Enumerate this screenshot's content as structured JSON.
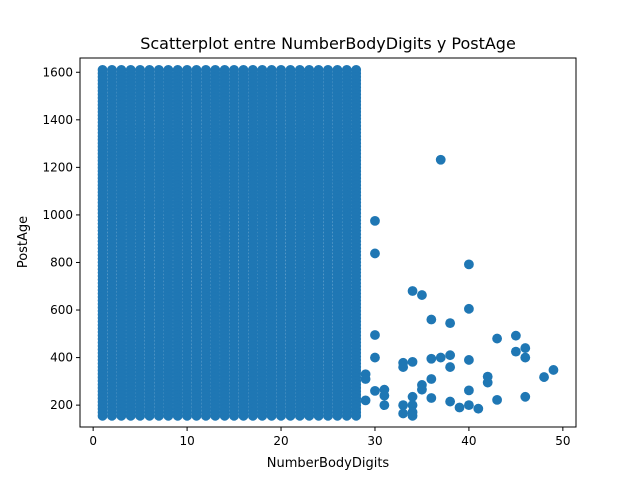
{
  "chart_data": {
    "type": "scatter",
    "title": "Scatterplot entre NumberBodyDigits y PostAge",
    "xlabel": "NumberBodyDigits",
    "ylabel": "PostAge",
    "xlim": [
      -1.4,
      51.4
    ],
    "ylim": [
      108,
      1660
    ],
    "xticks": [
      0,
      10,
      20,
      30,
      40,
      50
    ],
    "yticks": [
      200,
      400,
      600,
      800,
      1000,
      1200,
      1400,
      1600
    ],
    "grid": false,
    "legend": "none",
    "marker_color": "#1f77b4",
    "dense_region": {
      "x_values": [
        1,
        2,
        3,
        4,
        5,
        6,
        7,
        8,
        9,
        10,
        11,
        12,
        13,
        14,
        15,
        16,
        17,
        18,
        19,
        20,
        21,
        22,
        23,
        24,
        25,
        26,
        27,
        28
      ],
      "y_min": 155,
      "y_max": 1610
    },
    "points": [
      {
        "x": 30,
        "y": 975
      },
      {
        "x": 30,
        "y": 838
      },
      {
        "x": 30,
        "y": 495
      },
      {
        "x": 30,
        "y": 400
      },
      {
        "x": 29,
        "y": 330
      },
      {
        "x": 29,
        "y": 310
      },
      {
        "x": 30,
        "y": 260
      },
      {
        "x": 29,
        "y": 220
      },
      {
        "x": 31,
        "y": 265
      },
      {
        "x": 31,
        "y": 240
      },
      {
        "x": 31,
        "y": 200
      },
      {
        "x": 33,
        "y": 378
      },
      {
        "x": 33,
        "y": 360
      },
      {
        "x": 33,
        "y": 200
      },
      {
        "x": 33,
        "y": 165
      },
      {
        "x": 34,
        "y": 680
      },
      {
        "x": 34,
        "y": 382
      },
      {
        "x": 34,
        "y": 235
      },
      {
        "x": 34,
        "y": 200
      },
      {
        "x": 34,
        "y": 170
      },
      {
        "x": 34,
        "y": 155
      },
      {
        "x": 35,
        "y": 663
      },
      {
        "x": 35,
        "y": 285
      },
      {
        "x": 35,
        "y": 265
      },
      {
        "x": 36,
        "y": 560
      },
      {
        "x": 36,
        "y": 395
      },
      {
        "x": 36,
        "y": 310
      },
      {
        "x": 36,
        "y": 230
      },
      {
        "x": 37,
        "y": 1232
      },
      {
        "x": 37,
        "y": 400
      },
      {
        "x": 38,
        "y": 545
      },
      {
        "x": 38,
        "y": 410
      },
      {
        "x": 38,
        "y": 360
      },
      {
        "x": 38,
        "y": 215
      },
      {
        "x": 39,
        "y": 190
      },
      {
        "x": 40,
        "y": 792
      },
      {
        "x": 40,
        "y": 605
      },
      {
        "x": 40,
        "y": 390
      },
      {
        "x": 40,
        "y": 262
      },
      {
        "x": 40,
        "y": 200
      },
      {
        "x": 41,
        "y": 185
      },
      {
        "x": 42,
        "y": 320
      },
      {
        "x": 42,
        "y": 295
      },
      {
        "x": 43,
        "y": 480
      },
      {
        "x": 43,
        "y": 222
      },
      {
        "x": 45,
        "y": 492
      },
      {
        "x": 45,
        "y": 425
      },
      {
        "x": 46,
        "y": 440
      },
      {
        "x": 46,
        "y": 400
      },
      {
        "x": 46,
        "y": 235
      },
      {
        "x": 48,
        "y": 318
      },
      {
        "x": 49,
        "y": 348
      }
    ]
  }
}
